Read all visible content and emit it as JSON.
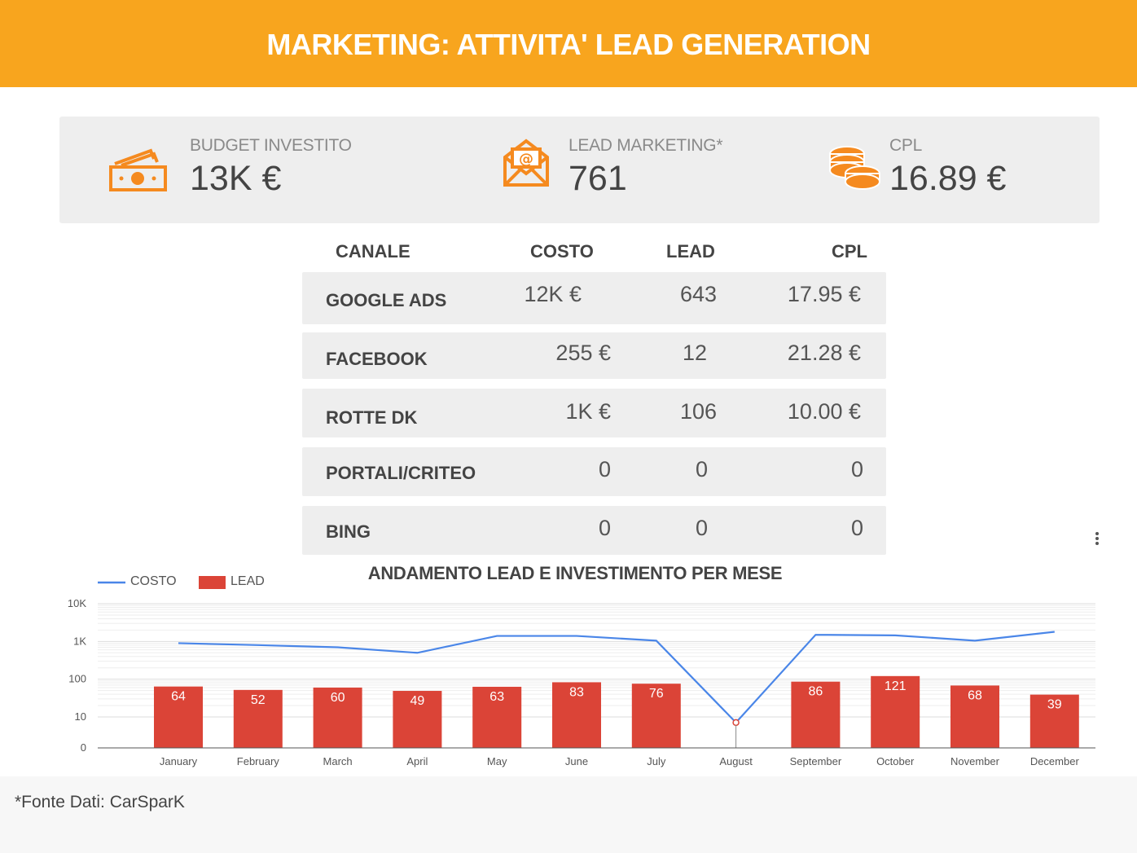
{
  "header": {
    "title": "MARKETING: ATTIVITA' LEAD GENERATION"
  },
  "colors": {
    "accent": "#f8a51e",
    "bar": "#db4437",
    "line": "#4a86e8",
    "panel": "#eeeeee"
  },
  "kpis": [
    {
      "icon": "money-icon",
      "label": "BUDGET INVESTITO",
      "value": "13K €"
    },
    {
      "icon": "email-icon",
      "label": "LEAD MARKETING*",
      "value": "761"
    },
    {
      "icon": "coins-icon",
      "label": "CPL",
      "value": "16.89 €"
    }
  ],
  "table": {
    "headers": [
      "CANALE",
      "COSTO",
      "LEAD",
      "CPL"
    ],
    "rows": [
      {
        "canale": "GOOGLE ADS",
        "costo": "12K €",
        "lead": "643",
        "cpl": "17.95 €"
      },
      {
        "canale": "FACEBOOK",
        "costo": "255 €",
        "lead": "12",
        "cpl": "21.28 €"
      },
      {
        "canale": "ROTTE DK",
        "costo": "1K €",
        "lead": "106",
        "cpl": "10.00 €"
      },
      {
        "canale": "PORTALI/CRITEO",
        "costo": "0",
        "lead": "0",
        "cpl": "0"
      },
      {
        "canale": "BING",
        "costo": "0",
        "lead": "0",
        "cpl": "0"
      }
    ]
  },
  "chart_data": {
    "type": "bar",
    "title": "ANDAMENTO LEAD E INVESTIMENTO PER MESE",
    "y_scale": "log",
    "y_ticks": [
      "0",
      "10",
      "100",
      "1K",
      "10K"
    ],
    "legend_position": "top-left",
    "categories": [
      "January",
      "February",
      "March",
      "April",
      "May",
      "June",
      "July",
      "August",
      "September",
      "October",
      "November",
      "December"
    ],
    "series": [
      {
        "name": "COSTO",
        "type": "line",
        "values": [
          900,
          800,
          700,
          500,
          1400,
          1400,
          1050,
          5,
          1500,
          1450,
          1050,
          1800
        ]
      },
      {
        "name": "LEAD",
        "type": "bar",
        "values": [
          64,
          52,
          60,
          49,
          63,
          83,
          76,
          0,
          86,
          121,
          68,
          39
        ]
      }
    ]
  },
  "footer": {
    "note": "*Fonte Dati: CarSparK"
  }
}
